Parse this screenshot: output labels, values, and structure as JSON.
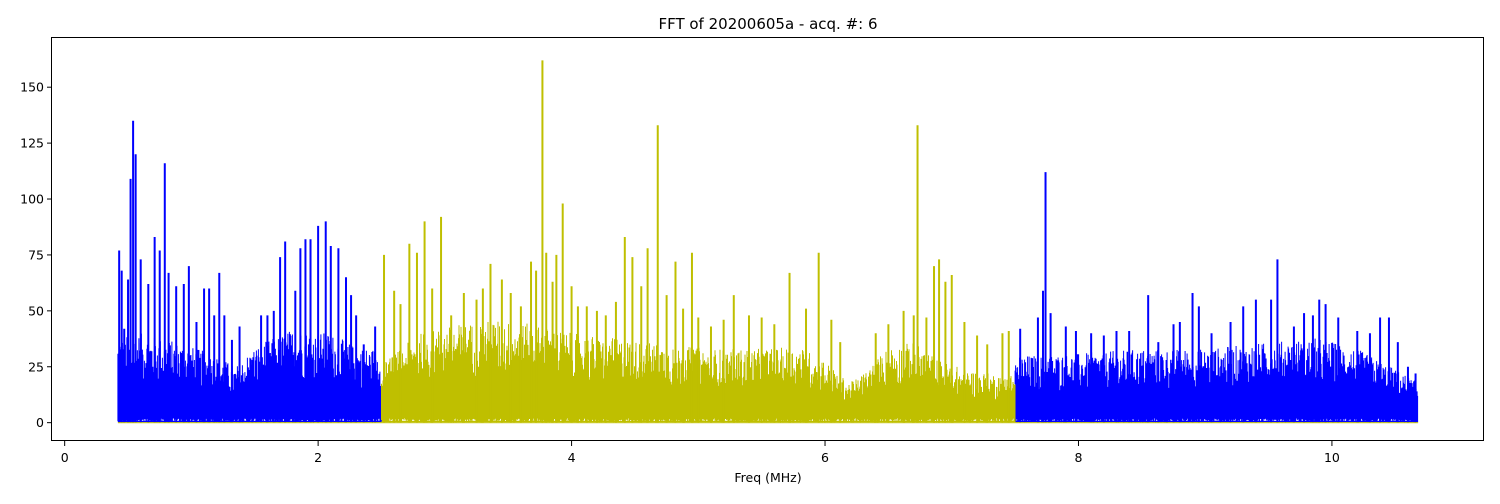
{
  "chart_data": {
    "type": "line",
    "title": "FFT of 20200605a - acq. #: 6",
    "xlabel": "Freq (MHz)",
    "ylabel": "",
    "xlim": [
      -0.1,
      11.2
    ],
    "ylim": [
      -8.2,
      172
    ],
    "xticks": [
      0,
      2,
      4,
      6,
      8,
      10
    ],
    "yticks": [
      0,
      25,
      50,
      75,
      100,
      125,
      150
    ],
    "grid": false,
    "legend": "none",
    "series": [
      {
        "color": "#0000ff",
        "noise_floor": 0,
        "segments": [
          [
            0.42,
            2.5
          ],
          [
            7.5,
            10.68
          ]
        ],
        "envelope": [
          [
            0.42,
            38
          ],
          [
            0.6,
            40
          ],
          [
            0.9,
            36
          ],
          [
            1.2,
            30
          ],
          [
            1.35,
            25
          ],
          [
            1.5,
            34
          ],
          [
            1.8,
            42
          ],
          [
            2.1,
            40
          ],
          [
            2.3,
            34
          ],
          [
            2.5,
            33
          ],
          [
            7.5,
            30
          ],
          [
            8.0,
            31
          ],
          [
            8.5,
            33
          ],
          [
            9.0,
            33
          ],
          [
            9.5,
            36
          ],
          [
            9.9,
            38
          ],
          [
            10.2,
            33
          ],
          [
            10.5,
            24
          ],
          [
            10.68,
            18
          ]
        ],
        "peaks": [
          [
            0.43,
            77
          ],
          [
            0.45,
            68
          ],
          [
            0.47,
            42
          ],
          [
            0.5,
            64
          ],
          [
            0.52,
            109
          ],
          [
            0.54,
            135
          ],
          [
            0.56,
            120
          ],
          [
            0.6,
            73
          ],
          [
            0.66,
            62
          ],
          [
            0.71,
            83
          ],
          [
            0.75,
            77
          ],
          [
            0.79,
            116
          ],
          [
            0.82,
            67
          ],
          [
            0.88,
            61
          ],
          [
            0.94,
            62
          ],
          [
            0.98,
            70
          ],
          [
            1.04,
            45
          ],
          [
            1.1,
            60
          ],
          [
            1.14,
            60
          ],
          [
            1.18,
            48
          ],
          [
            1.22,
            67
          ],
          [
            1.26,
            48
          ],
          [
            1.32,
            37
          ],
          [
            1.38,
            43
          ],
          [
            1.48,
            28
          ],
          [
            1.55,
            48
          ],
          [
            1.6,
            48
          ],
          [
            1.65,
            50
          ],
          [
            1.7,
            74
          ],
          [
            1.74,
            81
          ],
          [
            1.82,
            59
          ],
          [
            1.86,
            78
          ],
          [
            1.9,
            82
          ],
          [
            1.94,
            82
          ],
          [
            2.0,
            88
          ],
          [
            2.06,
            90
          ],
          [
            2.1,
            79
          ],
          [
            2.16,
            78
          ],
          [
            2.22,
            65
          ],
          [
            2.26,
            57
          ],
          [
            2.3,
            48
          ],
          [
            2.36,
            35
          ],
          [
            2.45,
            43
          ],
          [
            7.54,
            42
          ],
          [
            7.68,
            47
          ],
          [
            7.72,
            59
          ],
          [
            7.74,
            112
          ],
          [
            7.78,
            49
          ],
          [
            7.9,
            43
          ],
          [
            7.98,
            41
          ],
          [
            8.1,
            40
          ],
          [
            8.2,
            39
          ],
          [
            8.3,
            41
          ],
          [
            8.4,
            41
          ],
          [
            8.55,
            57
          ],
          [
            8.63,
            36
          ],
          [
            8.75,
            44
          ],
          [
            8.8,
            45
          ],
          [
            8.9,
            58
          ],
          [
            8.95,
            52
          ],
          [
            9.05,
            40
          ],
          [
            9.2,
            45
          ],
          [
            9.3,
            52
          ],
          [
            9.4,
            55
          ],
          [
            9.52,
            55
          ],
          [
            9.57,
            73
          ],
          [
            9.7,
            43
          ],
          [
            9.78,
            49
          ],
          [
            9.85,
            48
          ],
          [
            9.9,
            55
          ],
          [
            9.95,
            53
          ],
          [
            10.05,
            47
          ],
          [
            10.2,
            41
          ],
          [
            10.3,
            40
          ],
          [
            10.38,
            47
          ],
          [
            10.45,
            47
          ],
          [
            10.52,
            36
          ],
          [
            10.6,
            25
          ],
          [
            10.66,
            22
          ]
        ]
      },
      {
        "color": "#bfbf00",
        "noise_floor": 0,
        "segments": [
          [
            2.5,
            7.5
          ]
        ],
        "envelope": [
          [
            2.5,
            26
          ],
          [
            2.8,
            40
          ],
          [
            3.1,
            44
          ],
          [
            3.4,
            46
          ],
          [
            3.7,
            44
          ],
          [
            4.0,
            40
          ],
          [
            4.3,
            38
          ],
          [
            4.6,
            36
          ],
          [
            4.9,
            34
          ],
          [
            5.2,
            33
          ],
          [
            5.5,
            33
          ],
          [
            5.8,
            34
          ],
          [
            6.0,
            28
          ],
          [
            6.1,
            22
          ],
          [
            6.2,
            18
          ],
          [
            6.3,
            22
          ],
          [
            6.5,
            34
          ],
          [
            6.7,
            36
          ],
          [
            6.9,
            28
          ],
          [
            7.1,
            24
          ],
          [
            7.3,
            22
          ],
          [
            7.5,
            22
          ]
        ],
        "peaks": [
          [
            2.52,
            75
          ],
          [
            2.6,
            59
          ],
          [
            2.65,
            53
          ],
          [
            2.72,
            80
          ],
          [
            2.78,
            76
          ],
          [
            2.84,
            90
          ],
          [
            2.9,
            60
          ],
          [
            2.97,
            92
          ],
          [
            3.05,
            48
          ],
          [
            3.15,
            58
          ],
          [
            3.25,
            55
          ],
          [
            3.3,
            60
          ],
          [
            3.36,
            71
          ],
          [
            3.45,
            64
          ],
          [
            3.52,
            58
          ],
          [
            3.6,
            52
          ],
          [
            3.68,
            72
          ],
          [
            3.72,
            68
          ],
          [
            3.77,
            162
          ],
          [
            3.8,
            76
          ],
          [
            3.85,
            63
          ],
          [
            3.88,
            75
          ],
          [
            3.93,
            98
          ],
          [
            4.0,
            61
          ],
          [
            4.05,
            52
          ],
          [
            4.12,
            52
          ],
          [
            4.2,
            50
          ],
          [
            4.27,
            48
          ],
          [
            4.35,
            54
          ],
          [
            4.42,
            83
          ],
          [
            4.48,
            74
          ],
          [
            4.55,
            61
          ],
          [
            4.6,
            78
          ],
          [
            4.68,
            133
          ],
          [
            4.75,
            57
          ],
          [
            4.82,
            72
          ],
          [
            4.88,
            51
          ],
          [
            4.95,
            76
          ],
          [
            5.0,
            47
          ],
          [
            5.1,
            43
          ],
          [
            5.2,
            46
          ],
          [
            5.28,
            57
          ],
          [
            5.4,
            48
          ],
          [
            5.5,
            47
          ],
          [
            5.6,
            44
          ],
          [
            5.72,
            67
          ],
          [
            5.85,
            51
          ],
          [
            5.95,
            76
          ],
          [
            6.05,
            46
          ],
          [
            6.12,
            36
          ],
          [
            6.4,
            40
          ],
          [
            6.5,
            44
          ],
          [
            6.62,
            50
          ],
          [
            6.7,
            48
          ],
          [
            6.73,
            133
          ],
          [
            6.8,
            47
          ],
          [
            6.86,
            70
          ],
          [
            6.9,
            73
          ],
          [
            6.95,
            63
          ],
          [
            7.0,
            66
          ],
          [
            7.1,
            45
          ],
          [
            7.2,
            39
          ],
          [
            7.28,
            35
          ],
          [
            7.4,
            40
          ],
          [
            7.45,
            41
          ]
        ]
      }
    ]
  }
}
